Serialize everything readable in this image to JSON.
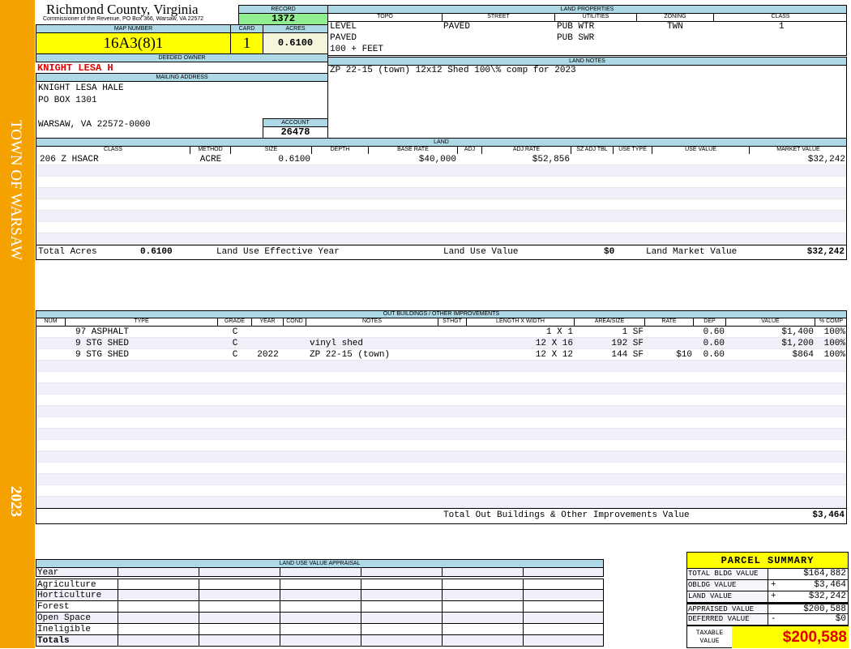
{
  "sidebar": {
    "town": "TOWN OF WARSAW",
    "year": "2023"
  },
  "header": {
    "title": "Richmond County, Virginia",
    "subtitle": "Commissioner of the Revenue, PO Box 366, Warsaw, VA 22572"
  },
  "record": {
    "label": "RECORD",
    "value": "1372"
  },
  "parcel": {
    "map_label": "MAP NUMBER",
    "map": "16A3(8)1",
    "card_label": "CARD",
    "card": "1",
    "acres_label": "ACRES",
    "acres": "0.6100"
  },
  "owner": {
    "label": "DEEDED OWNER",
    "name": "KNIGHT LESA H"
  },
  "mailing": {
    "label": "MAILING ADDRESS",
    "lines": [
      "KNIGHT LESA HALE",
      "PO BOX 1301",
      "",
      "WARSAW, VA 22572-0000"
    ]
  },
  "account": {
    "label": "ACCOUNT",
    "value": "26478"
  },
  "land_properties": {
    "label": "LAND PROPERTIES",
    "headers": [
      "TOPO",
      "STREET",
      "UTILITIES",
      "ZONING",
      "CLASS"
    ],
    "topo": [
      "LEVEL",
      "PAVED",
      "100 + FEET"
    ],
    "street": [
      "PAVED"
    ],
    "utilities": [
      "PUB WTR",
      "PUB SWR"
    ],
    "zoning": [
      "TWN"
    ],
    "class": [
      "1"
    ]
  },
  "land_notes": {
    "label": "LAND NOTES",
    "text": "ZP 22-15 (town) 12x12 Shed 100\\% comp for 2023"
  },
  "land": {
    "label": "LAND",
    "headers": [
      "CLASS",
      "METHOD",
      "SIZE",
      "DEPTH",
      "BASE RATE",
      "ADJ",
      "ADJ RATE",
      "SZ ADJ TBL",
      "USE TYPE",
      "USE VALUE",
      "MARKET VALUE"
    ],
    "rows": [
      [
        "206 Z HSACR",
        "ACRE",
        "0.6100",
        "",
        "$40,000",
        "",
        "$52,856",
        "",
        "",
        "",
        "$32,242"
      ]
    ],
    "totals": {
      "acres_label": "Total Acres",
      "acres": "0.6100",
      "effective_year_label": "Land Use Effective Year",
      "effective_year": "",
      "use_value_label": "Land Use Value",
      "use_value": "$0",
      "market_label": "Land Market Value",
      "market": "$32,242"
    }
  },
  "outbuildings": {
    "label": "OUT BUILDINGS / OTHER IMPROVEMENTS",
    "headers": [
      "NUM",
      "TYPE",
      "GRADE",
      "YEAR",
      "COND",
      "NOTES",
      "STHGT",
      "LENGTH X WIDTH",
      "AREA/SIZE",
      "RATE",
      "DEP",
      "VALUE",
      "% COMP"
    ],
    "rows": [
      [
        "",
        "97 ASPHALT",
        "C",
        "",
        "",
        "",
        "",
        "1 X 1",
        "1 SF",
        "",
        "0.60",
        "$1,400",
        "100%"
      ],
      [
        "",
        "9 STG SHED",
        "C",
        "",
        "",
        "vinyl shed",
        "",
        "12 X 16",
        "192 SF",
        "",
        "0.60",
        "$1,200",
        "100%"
      ],
      [
        "",
        "9 STG SHED",
        "C",
        "2022",
        "",
        "ZP 22-15 (town)",
        "",
        "12 X 12",
        "144 SF",
        "$10",
        "0.60",
        "$864",
        "100%"
      ]
    ],
    "total_label": "Total Out Buildings & Other Improvements Value",
    "total": "$3,464"
  },
  "land_use": {
    "label": "LAND USE VALUE APPRAISAL",
    "year_label": "Year",
    "rows": [
      "Agriculture",
      "Horticulture",
      "Forest",
      "Open Space",
      "Ineligible"
    ],
    "totals_label": "Totals"
  },
  "summary": {
    "title": "PARCEL SUMMARY",
    "rows": [
      {
        "label": "TOTAL BLDG VALUE",
        "sign": "",
        "value": "$164,882"
      },
      {
        "label": "OBLDG VALUE",
        "sign": "+",
        "value": "$3,464"
      },
      {
        "label": "LAND VALUE",
        "sign": "+",
        "value": "$32,242"
      },
      {
        "label": "APPRAISED VALUE",
        "sign": "",
        "value": "$200,588"
      },
      {
        "label": "DEFERRED VALUE",
        "sign": "-",
        "value": "$0"
      }
    ],
    "taxable_label": "TAXABLE VALUE",
    "taxable": "$200,588"
  },
  "colors": {
    "sidebar": "#f5a100",
    "header": "#add8e6",
    "highlight": "#ffff00",
    "record": "#90ee90",
    "owner": "#e00000"
  }
}
